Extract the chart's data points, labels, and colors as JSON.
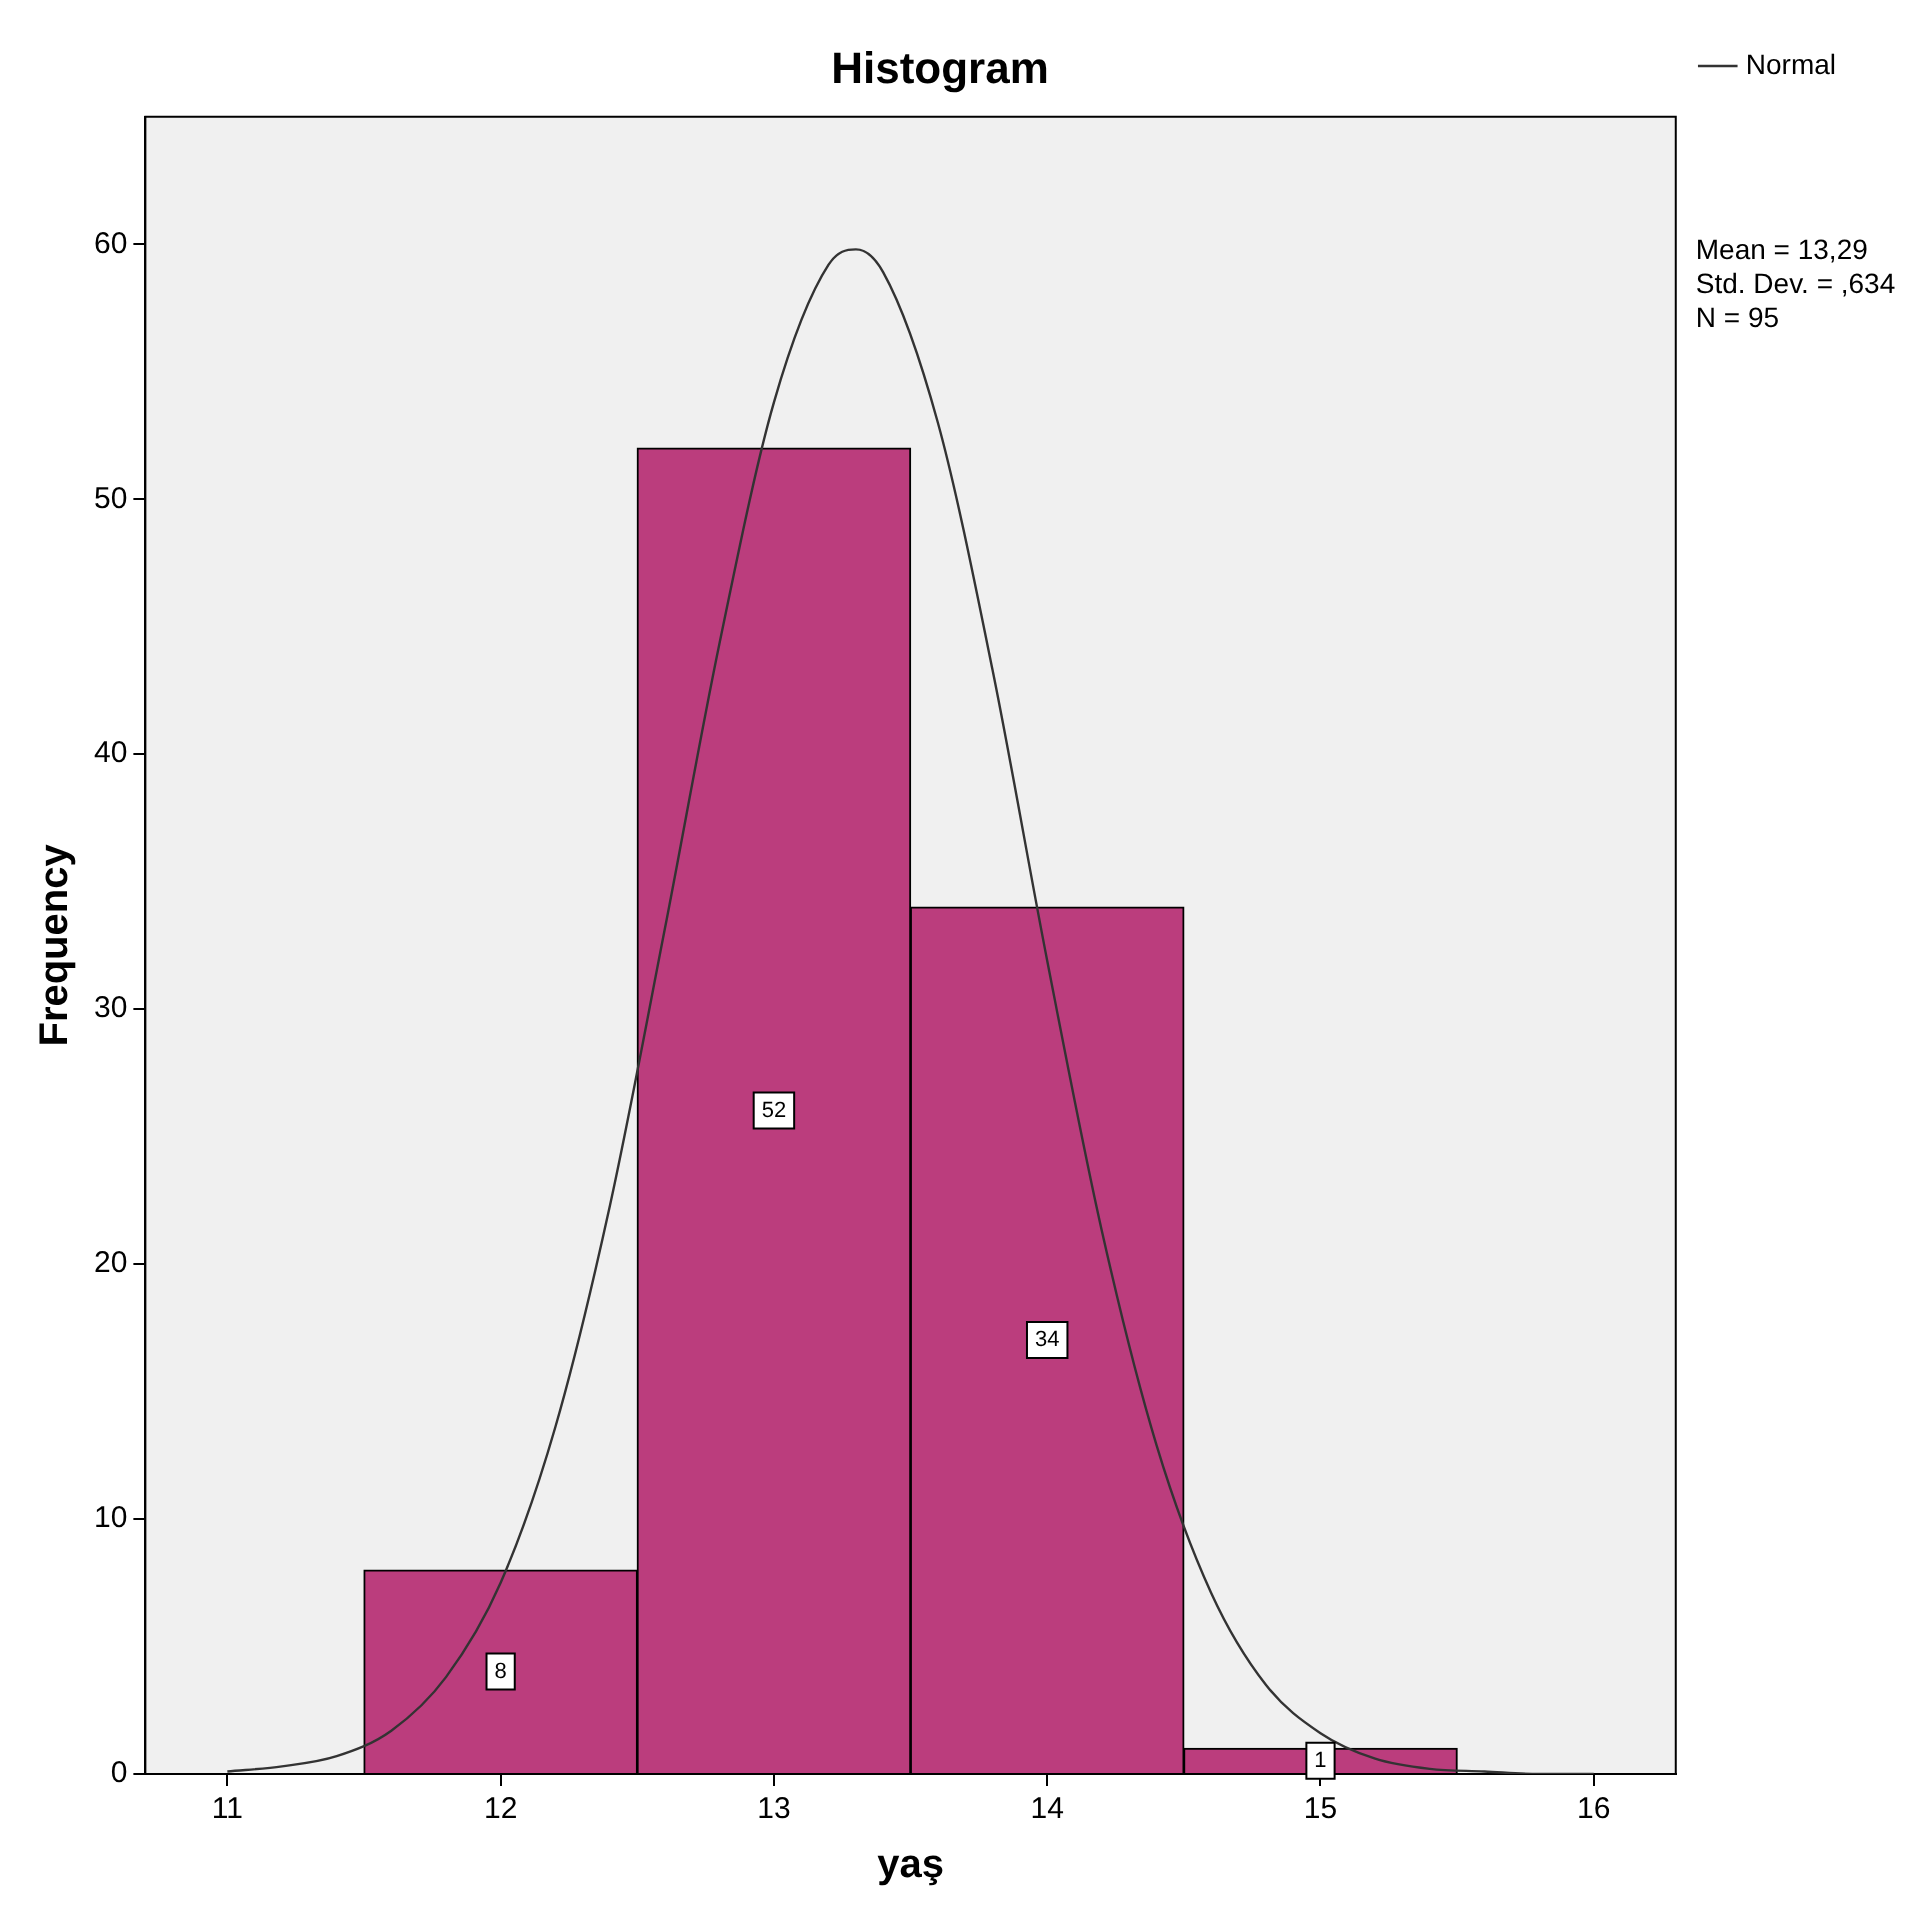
{
  "chart_data": {
    "type": "histogram",
    "title": "Histogram",
    "xlabel": "yaş",
    "ylabel": "Frequency",
    "bins": [
      11.5,
      12.5,
      13.5,
      14.5,
      15.5
    ],
    "values": [
      8,
      52,
      34,
      1
    ],
    "color": "#bb3d7d",
    "value_labels": [
      "8",
      "52",
      "34",
      "1"
    ],
    "series": [
      {
        "name": "Normal",
        "type": "line",
        "color": "#333333",
        "marker": "none",
        "x": [
          11.0,
          11.2,
          11.4,
          11.6,
          11.8,
          12.0,
          12.2,
          12.4,
          12.6,
          12.8,
          13.0,
          13.2,
          13.3,
          13.4,
          13.6,
          13.8,
          14.0,
          14.2,
          14.4,
          14.6,
          14.8,
          15.0,
          15.2,
          15.4,
          15.6,
          15.8,
          16.0
        ],
        "values": [
          0.1,
          0.3,
          0.7,
          1.7,
          3.8,
          7.5,
          13.6,
          22.3,
          33.1,
          44.3,
          53.8,
          59.2,
          59.8,
          58.9,
          53.0,
          43.3,
          31.9,
          21.3,
          12.9,
          7.1,
          3.5,
          1.6,
          0.6,
          0.2,
          0.1,
          0.0,
          0.0
        ]
      }
    ],
    "annotations": [
      "Mean = 13,29",
      "Std. Dev. = ,634",
      "N = 95"
    ],
    "xlim": [
      10.7,
      16.3
    ],
    "ylim": [
      0,
      65
    ],
    "xticks": [
      11,
      12,
      13,
      14,
      15,
      16
    ],
    "yticks": [
      0,
      10,
      20,
      30,
      40,
      50,
      60
    ],
    "legend": "top right"
  }
}
